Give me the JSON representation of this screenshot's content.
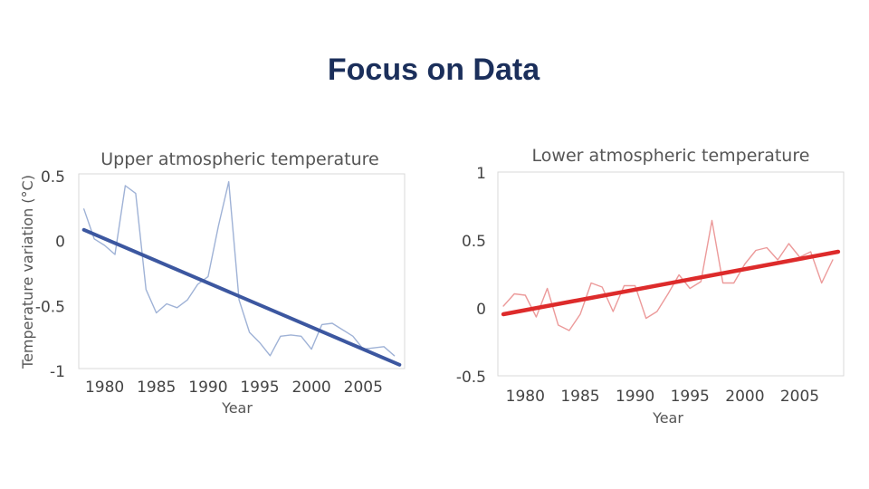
{
  "slide": {
    "title": "Focus on Data"
  },
  "chart_data": [
    {
      "type": "line",
      "title": "Upper atmospheric temperature",
      "xlabel": "Year",
      "ylabel": "Temperature variation (°C)",
      "xlim": [
        1977.5,
        2009
      ],
      "ylim": [
        -1,
        0.5
      ],
      "xticks": [
        1980,
        1985,
        1990,
        1995,
        2000,
        2005
      ],
      "xtick_labels": [
        "1980",
        "1985",
        "1990",
        "1995",
        "2000",
        "2005"
      ],
      "yticks": [
        0.5,
        0,
        -0.5,
        -1
      ],
      "ytick_labels": [
        "0.5",
        "0",
        "-0.5",
        "-1"
      ],
      "colors": {
        "series": "#9fb2d6",
        "trend": "#3c57a0"
      },
      "series": [
        {
          "name": "Observed",
          "x": [
            1978,
            1979,
            1980,
            1981,
            1982,
            1983,
            1984,
            1985,
            1986,
            1987,
            1988,
            1989,
            1990,
            1991,
            1992,
            1993,
            1994,
            1995,
            1996,
            1997,
            1998,
            1999,
            2000,
            2001,
            2002,
            2003,
            2004,
            2005,
            2006,
            2007,
            2008
          ],
          "values": [
            0.25,
            0.02,
            -0.03,
            -0.1,
            0.43,
            0.37,
            -0.37,
            -0.55,
            -0.48,
            -0.51,
            -0.45,
            -0.33,
            -0.27,
            0.12,
            0.46,
            -0.45,
            -0.7,
            -0.78,
            -0.88,
            -0.73,
            -0.72,
            -0.73,
            -0.83,
            -0.64,
            -0.63,
            -0.68,
            -0.73,
            -0.83,
            -0.82,
            -0.81,
            -0.88
          ]
        },
        {
          "name": "Trend",
          "x": [
            1978,
            2008.5
          ],
          "values": [
            0.09,
            -0.95
          ]
        }
      ]
    },
    {
      "type": "line",
      "title": "Lower atmospheric temperature",
      "xlabel": "Year",
      "ylabel": "",
      "xlim": [
        1977.5,
        2009
      ],
      "ylim": [
        -0.5,
        1
      ],
      "xticks": [
        1980,
        1985,
        1990,
        1995,
        2000,
        2005
      ],
      "xtick_labels": [
        "1980",
        "1985",
        "1990",
        "1995",
        "2000",
        "2005"
      ],
      "yticks": [
        1,
        0.5,
        0,
        -0.5
      ],
      "ytick_labels": [
        "1",
        "0.5",
        "0",
        "-0.5"
      ],
      "colors": {
        "series": "#ec9a9a",
        "trend": "#dd2b2b"
      },
      "series": [
        {
          "name": "Observed",
          "x": [
            1978,
            1979,
            1980,
            1981,
            1982,
            1983,
            1984,
            1985,
            1986,
            1987,
            1988,
            1989,
            1990,
            1991,
            1992,
            1993,
            1994,
            1995,
            1996,
            1997,
            1998,
            1999,
            2000,
            2001,
            2002,
            2003,
            2004,
            2005,
            2006,
            2007,
            2008
          ],
          "values": [
            0.02,
            0.11,
            0.1,
            -0.06,
            0.15,
            -0.12,
            -0.16,
            -0.04,
            0.19,
            0.16,
            -0.02,
            0.17,
            0.17,
            -0.07,
            -0.02,
            0.11,
            0.25,
            0.15,
            0.2,
            0.65,
            0.19,
            0.19,
            0.33,
            0.43,
            0.45,
            0.36,
            0.48,
            0.38,
            0.42,
            0.19,
            0.36
          ]
        },
        {
          "name": "Trend",
          "x": [
            1978,
            2008.5
          ],
          "values": [
            -0.04,
            0.42
          ]
        }
      ]
    }
  ]
}
